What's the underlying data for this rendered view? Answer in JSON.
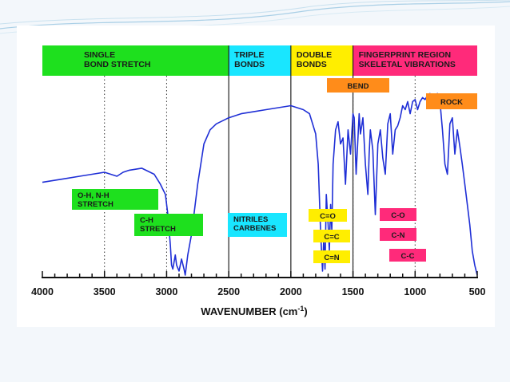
{
  "colors": {
    "green": "#1ee01e",
    "cyan": "#19e6ff",
    "yellow": "#ffee00",
    "magenta": "#ff2a7a",
    "orange": "#ff8c1a",
    "trace": "#1f2fd6"
  },
  "chart_data": {
    "type": "line",
    "title": "",
    "xlabel": "WAVENUMBER (cm",
    "xlabel_sup": "-1",
    "xlabel_close": ")",
    "ylabel": "",
    "xlim": [
      4000,
      500
    ],
    "x_reversed": true,
    "grid": "dotted vertical lines at 3500, 3000, 1500, 1000",
    "xticks": [
      "4000",
      "3500",
      "3000",
      "2500",
      "2000",
      "1500",
      "1000",
      "500"
    ],
    "regions": [
      {
        "name": "single-bond",
        "lines": [
          "SINGLE",
          "BOND STRETCH"
        ],
        "from": 4000,
        "to": 2500,
        "color": "green"
      },
      {
        "name": "triple-bonds",
        "lines": [
          "TRIPLE",
          "BONDS"
        ],
        "from": 2500,
        "to": 2000,
        "color": "cyan"
      },
      {
        "name": "double-bonds",
        "lines": [
          "DOUBLE",
          "BONDS"
        ],
        "from": 2000,
        "to": 1500,
        "color": "yellow"
      },
      {
        "name": "fingerprint",
        "lines": [
          "FINGERPRINT REGION",
          "SKELETAL VIBRATIONS"
        ],
        "from": 1500,
        "to": 500,
        "color": "magenta"
      }
    ],
    "annotations": [
      {
        "name": "oh-nh-stretch",
        "lines": [
          "O-H, N-H",
          "STRETCH"
        ],
        "color": "green"
      },
      {
        "name": "ch-stretch",
        "lines": [
          "C-H",
          "STRETCH"
        ],
        "color": "green"
      },
      {
        "name": "nitriles-carbenes",
        "lines": [
          "NITRILES",
          "CARBENES"
        ],
        "color": "cyan"
      },
      {
        "name": "c-o-double",
        "lines": [
          "C=O"
        ],
        "color": "yellow"
      },
      {
        "name": "c-c-double",
        "lines": [
          "C=C"
        ],
        "color": "yellow"
      },
      {
        "name": "c-n-double",
        "lines": [
          "C=N"
        ],
        "color": "yellow"
      },
      {
        "name": "c-o-single",
        "lines": [
          "C-O"
        ],
        "color": "magenta"
      },
      {
        "name": "c-n-single",
        "lines": [
          "C-N"
        ],
        "color": "magenta"
      },
      {
        "name": "c-c-single",
        "lines": [
          "C-C"
        ],
        "color": "magenta"
      },
      {
        "name": "bend",
        "lines": [
          "BEND"
        ],
        "color": "orange"
      },
      {
        "name": "rock",
        "lines": [
          "ROCK"
        ],
        "color": "orange"
      }
    ],
    "series": [
      {
        "values_note": "",
        "x": [
          4000,
          3900,
          3800,
          3700,
          3600,
          3500,
          3450,
          3400,
          3350,
          3300,
          3200,
          3100,
          3050,
          3010,
          2990,
          2970,
          2960,
          2950,
          2930,
          2920,
          2900,
          2880,
          2860,
          2850,
          2830,
          2800,
          2750,
          2700,
          2650,
          2600,
          2500,
          2400,
          2300,
          2200,
          2100,
          2000,
          1950,
          1900,
          1850,
          1800,
          1780,
          1760,
          1745,
          1735,
          1725,
          1715,
          1700,
          1690,
          1680,
          1670,
          1660,
          1640,
          1620,
          1600,
          1580,
          1560,
          1540,
          1520,
          1500,
          1490,
          1475,
          1460,
          1450,
          1440,
          1420,
          1400,
          1380,
          1370,
          1360,
          1340,
          1320,
          1300,
          1280,
          1260,
          1240,
          1220,
          1200,
          1180,
          1160,
          1140,
          1120,
          1100,
          1080,
          1060,
          1040,
          1020,
          1000,
          980,
          960,
          940,
          920,
          900,
          880,
          860,
          840,
          820,
          800,
          780,
          760,
          740,
          720,
          700,
          680,
          660,
          640,
          620,
          600,
          580,
          560,
          540,
          520,
          500
        ],
        "y": [
          46,
          47,
          48,
          49,
          50,
          51,
          50,
          49,
          51,
          52,
          53,
          50,
          45,
          40,
          30,
          15,
          5,
          3,
          10,
          5,
          2,
          8,
          3,
          0,
          10,
          20,
          45,
          65,
          72,
          75,
          78,
          80,
          81,
          82,
          83,
          84,
          83,
          82,
          80,
          70,
          55,
          20,
          2,
          18,
          3,
          40,
          25,
          12,
          35,
          22,
          55,
          72,
          76,
          65,
          68,
          45,
          72,
          60,
          80,
          78,
          50,
          68,
          80,
          70,
          78,
          55,
          40,
          60,
          72,
          62,
          30,
          65,
          72,
          58,
          50,
          75,
          80,
          60,
          72,
          74,
          78,
          84,
          82,
          86,
          80,
          86,
          87,
          82,
          86,
          88,
          87,
          89,
          90,
          88,
          89,
          90,
          86,
          72,
          55,
          50,
          75,
          78,
          60,
          72,
          64,
          55,
          45,
          35,
          25,
          12,
          5,
          0
        ],
        "ylim": [
          0,
          100
        ]
      }
    ]
  }
}
